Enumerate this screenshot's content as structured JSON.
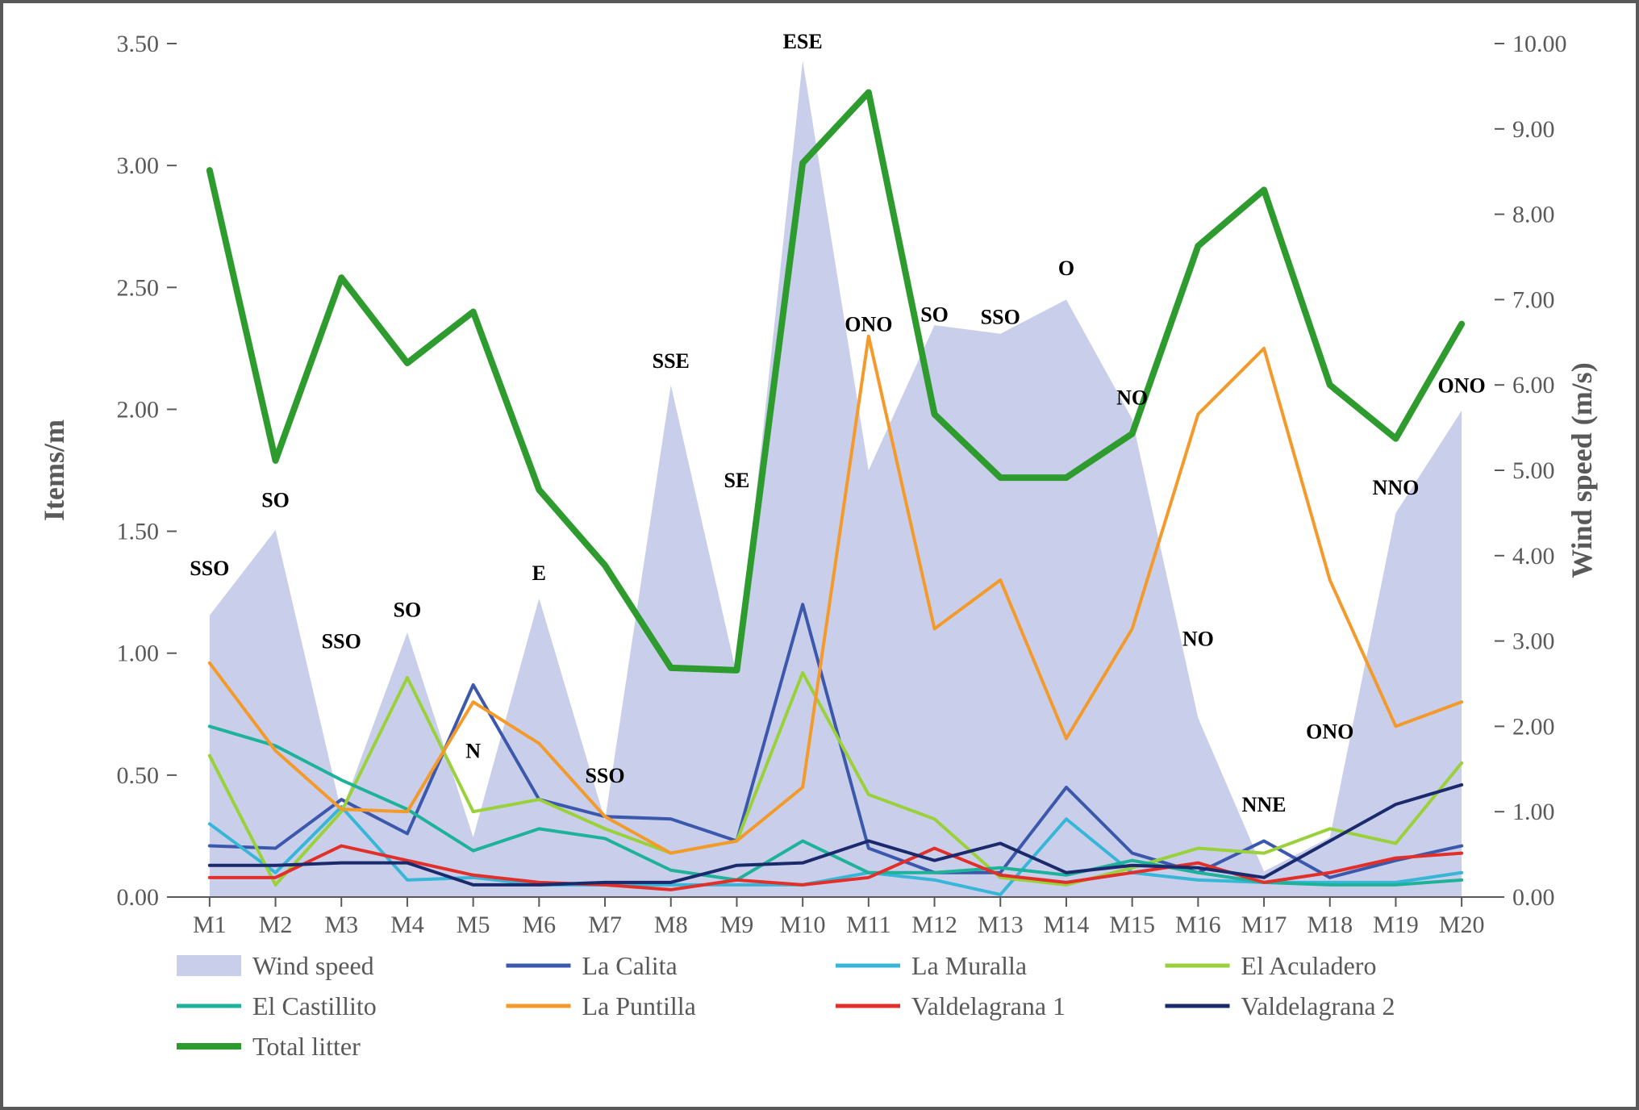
{
  "chart": {
    "type": "line+area",
    "background_color": "#ffffff",
    "border_color": "#595959",
    "categories": [
      "M1",
      "M2",
      "M3",
      "M4",
      "M5",
      "M6",
      "M7",
      "M8",
      "M9",
      "M10",
      "M11",
      "M12",
      "M13",
      "M14",
      "M15",
      "M16",
      "M17",
      "M18",
      "M19",
      "M20"
    ],
    "left_axis": {
      "label": "Items/m",
      "min": 0.0,
      "max": 3.5,
      "step": 0.5,
      "decimals": 2,
      "tick_color": "#595959"
    },
    "right_axis": {
      "label": "Wind speed (m/s)",
      "min": 0.0,
      "max": 10.0,
      "step": 1.0,
      "decimals": 2,
      "tick_color": "#595959"
    },
    "area_series": {
      "name": "Wind speed",
      "axis": "right",
      "fill_color": "#c9cfea",
      "opacity": 1.0,
      "values": [
        3.3,
        4.3,
        1.0,
        3.1,
        0.7,
        3.5,
        0.9,
        6.0,
        2.6,
        9.8,
        5.0,
        6.7,
        6.6,
        7.0,
        5.6,
        2.1,
        0.3,
        0.7,
        4.5,
        5.7
      ]
    },
    "line_series": [
      {
        "name": "La Calita",
        "color": "#3b58ad",
        "width": 4,
        "values": [
          0.21,
          0.2,
          0.4,
          0.26,
          0.87,
          0.4,
          0.33,
          0.32,
          0.23,
          1.2,
          0.2,
          0.1,
          0.1,
          0.45,
          0.18,
          0.1,
          0.23,
          0.08,
          0.15,
          0.21
        ]
      },
      {
        "name": "La Muralla",
        "color": "#37b6d8",
        "width": 4,
        "values": [
          0.3,
          0.1,
          0.37,
          0.07,
          0.08,
          0.05,
          0.05,
          0.05,
          0.05,
          0.05,
          0.1,
          0.07,
          0.01,
          0.32,
          0.1,
          0.07,
          0.06,
          0.06,
          0.06,
          0.1
        ]
      },
      {
        "name": "El Aculadero",
        "color": "#9ad13a",
        "width": 4,
        "values": [
          0.58,
          0.05,
          0.35,
          0.9,
          0.35,
          0.4,
          0.28,
          0.18,
          0.23,
          0.92,
          0.42,
          0.32,
          0.08,
          0.05,
          0.12,
          0.2,
          0.18,
          0.28,
          0.22,
          0.55
        ]
      },
      {
        "name": "El Castillito",
        "color": "#1eb29a",
        "width": 4,
        "values": [
          0.7,
          0.62,
          0.48,
          0.36,
          0.19,
          0.28,
          0.24,
          0.11,
          0.07,
          0.23,
          0.1,
          0.1,
          0.12,
          0.09,
          0.15,
          0.1,
          0.06,
          0.05,
          0.05,
          0.07
        ]
      },
      {
        "name": "La Puntilla",
        "color": "#f39a2b",
        "width": 4,
        "values": [
          0.96,
          0.6,
          0.36,
          0.35,
          0.8,
          0.63,
          0.33,
          0.18,
          0.23,
          0.45,
          2.3,
          1.1,
          1.3,
          0.65,
          1.1,
          1.98,
          2.25,
          1.3,
          0.7,
          0.8
        ]
      },
      {
        "name": "Valdelagrana 1",
        "color": "#e22f2a",
        "width": 4,
        "values": [
          0.08,
          0.08,
          0.21,
          0.15,
          0.09,
          0.06,
          0.05,
          0.03,
          0.07,
          0.05,
          0.08,
          0.2,
          0.09,
          0.06,
          0.1,
          0.14,
          0.06,
          0.1,
          0.16,
          0.18
        ]
      },
      {
        "name": "Valdelagrana 2",
        "color": "#1a2a6c",
        "width": 4,
        "values": [
          0.13,
          0.13,
          0.14,
          0.14,
          0.05,
          0.05,
          0.06,
          0.06,
          0.13,
          0.14,
          0.23,
          0.15,
          0.22,
          0.1,
          0.13,
          0.12,
          0.08,
          0.23,
          0.38,
          0.46
        ]
      },
      {
        "name": "Total litter",
        "color": "#2e9b2e",
        "width": 8,
        "values": [
          2.98,
          1.79,
          2.54,
          2.19,
          2.4,
          1.67,
          1.36,
          0.94,
          0.93,
          3.01,
          3.3,
          1.98,
          1.72,
          1.72,
          1.9,
          2.67,
          2.9,
          2.1,
          1.88,
          2.35
        ]
      }
    ],
    "direction_labels": [
      {
        "i": 0,
        "text": "SSO",
        "y_items": 1.32
      },
      {
        "i": 1,
        "text": "SO",
        "y_items": 1.6
      },
      {
        "i": 2,
        "text": "SSO",
        "y_items": 1.02
      },
      {
        "i": 3,
        "text": "SO",
        "y_items": 1.15
      },
      {
        "i": 4,
        "text": "N",
        "y_items": 0.57
      },
      {
        "i": 5,
        "text": "E",
        "y_items": 1.3
      },
      {
        "i": 6,
        "text": "SSO",
        "y_items": 0.47
      },
      {
        "i": 7,
        "text": "SSE",
        "y_items": 2.17
      },
      {
        "i": 8,
        "text": "SE",
        "y_items": 1.68
      },
      {
        "i": 9,
        "text": "ESE",
        "y_items": 3.48
      },
      {
        "i": 10,
        "text": "ONO",
        "y_items": 2.32
      },
      {
        "i": 11,
        "text": "SO",
        "y_items": 2.36
      },
      {
        "i": 12,
        "text": "SSO",
        "y_items": 2.35
      },
      {
        "i": 13,
        "text": "O",
        "y_items": 2.55
      },
      {
        "i": 14,
        "text": "NO",
        "y_items": 2.02
      },
      {
        "i": 15,
        "text": "NO",
        "y_items": 1.03
      },
      {
        "i": 16,
        "text": "NNE",
        "y_items": 0.35
      },
      {
        "i": 17,
        "text": "ONO",
        "y_items": 0.65
      },
      {
        "i": 18,
        "text": "NNO",
        "y_items": 1.65
      },
      {
        "i": 19,
        "text": "ONO",
        "y_items": 2.07
      }
    ],
    "legend": {
      "area_swatch_color": "#c9cfea",
      "layout_cols": 4,
      "line_swatch_len": 80,
      "line_swatch_thick": 5
    }
  }
}
